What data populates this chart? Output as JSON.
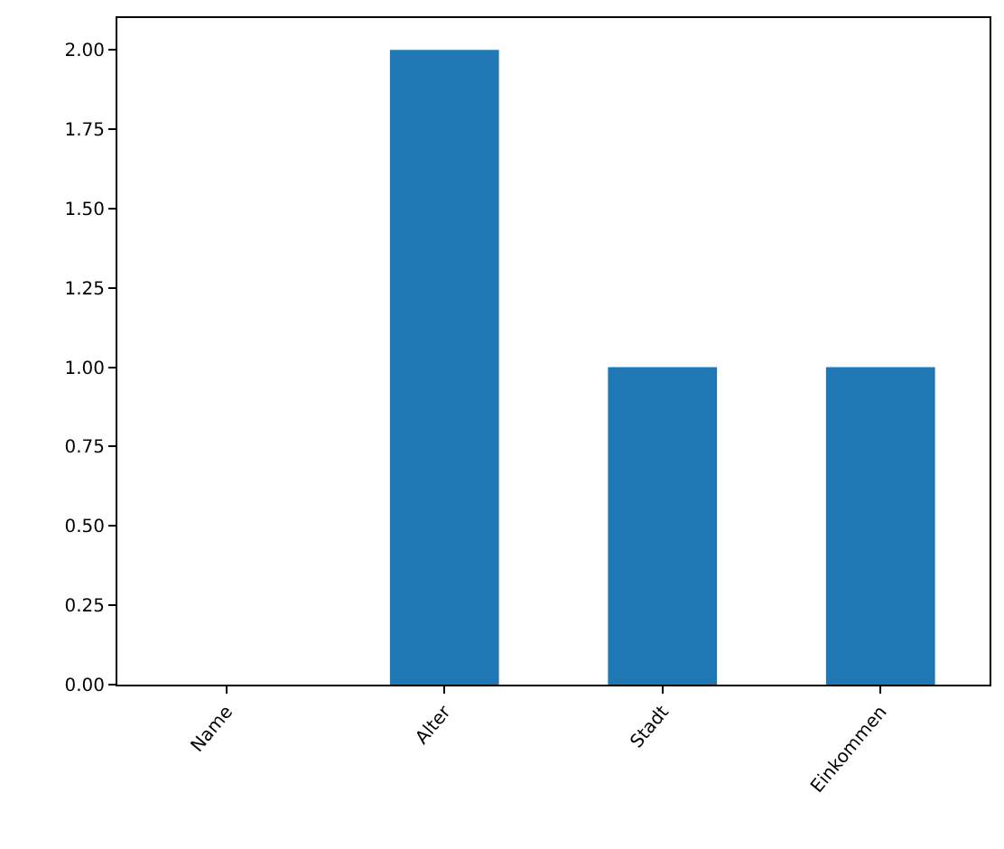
{
  "chart_data": {
    "type": "bar",
    "categories": [
      "Name",
      "Alter",
      "Stadt",
      "Einkommen"
    ],
    "values": [
      0,
      2,
      1,
      1
    ],
    "color": "#1f77b4",
    "ylim": [
      0,
      2.1
    ],
    "yticks": [
      {
        "value": 0,
        "label": "0.00"
      },
      {
        "value": 0.25,
        "label": "0.25"
      },
      {
        "value": 0.5,
        "label": "0.50"
      },
      {
        "value": 0.75,
        "label": "0.75"
      },
      {
        "value": 1,
        "label": "1.00"
      },
      {
        "value": 1.25,
        "label": "1.25"
      },
      {
        "value": 1.5,
        "label": "1.50"
      },
      {
        "value": 1.75,
        "label": "1.75"
      },
      {
        "value": 2,
        "label": "2.00"
      }
    ],
    "grid": false
  }
}
